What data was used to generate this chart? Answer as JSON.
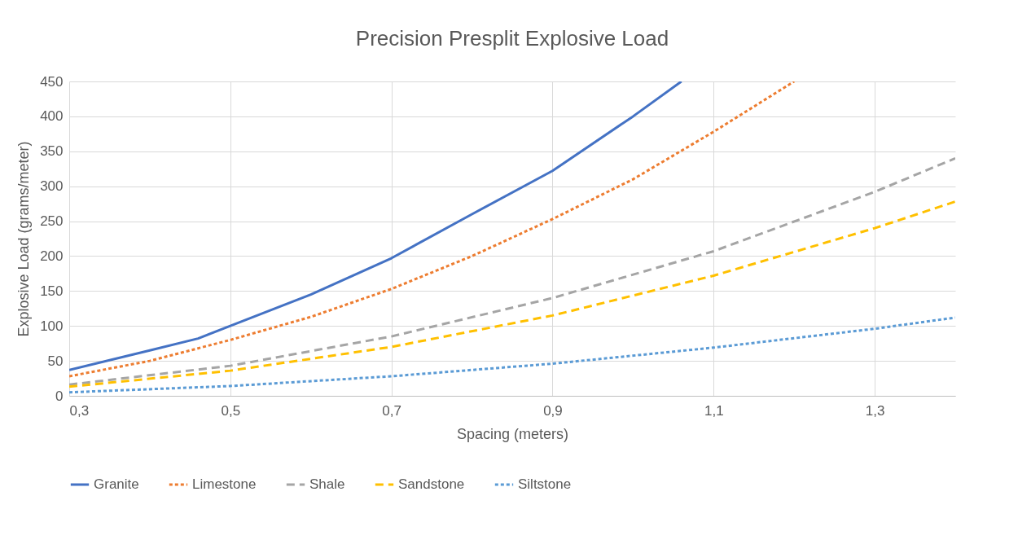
{
  "chart_data": {
    "type": "line",
    "title": "Precision Presplit Explosive Load",
    "xlabel": "Spacing (meters)",
    "ylabel": "Explosive Load (grams/meter)",
    "xlim": [
      0.3,
      1.4
    ],
    "ylim": [
      0,
      450
    ],
    "xticks": [
      {
        "value": 0.3,
        "label": "0,3"
      },
      {
        "value": 0.5,
        "label": "0,5"
      },
      {
        "value": 0.7,
        "label": "0,7"
      },
      {
        "value": 0.9,
        "label": "0,9"
      },
      {
        "value": 1.1,
        "label": "1,1"
      },
      {
        "value": 1.3,
        "label": "1,3"
      }
    ],
    "yticks": [
      0,
      50,
      100,
      150,
      200,
      250,
      300,
      350,
      400,
      450
    ],
    "grid": true,
    "legend": "bottom",
    "series": [
      {
        "name": "Granite",
        "color": "#4472c4",
        "line_style": "solid",
        "x": [
          0.3,
          0.4,
          0.46,
          0.5,
          0.6,
          0.7,
          0.8,
          0.9,
          1.0,
          1.06
        ],
        "values": [
          37,
          65,
          82,
          100,
          145,
          197,
          260,
          322,
          400,
          450
        ]
      },
      {
        "name": "Limestone",
        "color": "#ed7d31",
        "line_style": "dotted",
        "x": [
          0.3,
          0.4,
          0.5,
          0.6,
          0.7,
          0.8,
          0.9,
          1.0,
          1.1,
          1.2
        ],
        "values": [
          28,
          50,
          80,
          113,
          153,
          200,
          253,
          310,
          378,
          450
        ]
      },
      {
        "name": "Shale",
        "color": "#a5a5a5",
        "line_style": "dashed",
        "x": [
          0.3,
          0.5,
          0.7,
          0.9,
          1.1,
          1.3,
          1.4
        ],
        "values": [
          16,
          43,
          85,
          140,
          207,
          292,
          340
        ]
      },
      {
        "name": "Sandstone",
        "color": "#ffc000",
        "line_style": "dashed",
        "x": [
          0.3,
          0.5,
          0.7,
          0.9,
          1.1,
          1.3,
          1.4
        ],
        "values": [
          13,
          36,
          70,
          115,
          172,
          240,
          278
        ]
      },
      {
        "name": "Siltstone",
        "color": "#5b9bd5",
        "line_style": "dotted",
        "x": [
          0.3,
          0.5,
          0.7,
          0.9,
          1.1,
          1.3,
          1.4
        ],
        "values": [
          5,
          14,
          28,
          46,
          69,
          96,
          112
        ]
      }
    ]
  }
}
